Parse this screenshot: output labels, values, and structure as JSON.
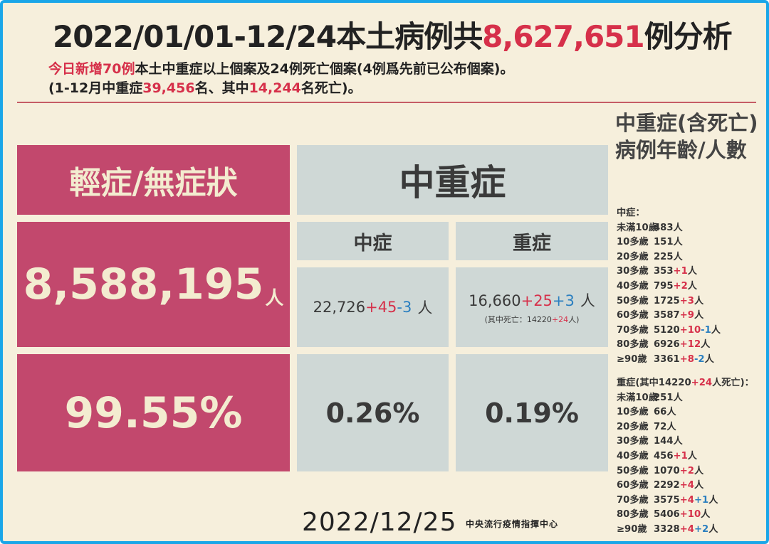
{
  "title": {
    "prefix": "2022/01/01-12/24本土病例共",
    "total": "8,627,651",
    "suffix": "例分析"
  },
  "subtitle1": {
    "new_label": "今日新增70例",
    "rest": "本土中重症以上個案及24例死亡個案(4例爲先前已公布個案)。"
  },
  "subtitle2": {
    "p1": "(1-12月中重症",
    "severe_total": "39,456",
    "p2": "名、其中",
    "deaths": "14,244",
    "p3": "名死亡)。"
  },
  "mild": {
    "header": "輕症/無症狀",
    "count": "8,588,195",
    "unit": "人",
    "percent": "99.55%"
  },
  "moderate_severe": {
    "header": "中重症",
    "moderate": {
      "header": "中症",
      "base": "22,726",
      "plus": "+45",
      "minus": "-3",
      "unit": "人",
      "percent": "0.26%"
    },
    "severe": {
      "header": "重症",
      "base": "16,660",
      "plus": "+25",
      "plus2": "+3",
      "unit": "人",
      "death_note_pre": "(其中死亡：14220",
      "death_note_plus": "+24",
      "death_note_post": "人)",
      "percent": "0.19%"
    }
  },
  "side": {
    "title": "中重症(含死亡)病例年齡/人數",
    "moderate_heading": "中症：",
    "moderate_rows": [
      {
        "age": "未滿10歲",
        "base": "483",
        "plus": "",
        "minus": "",
        "unit": "人"
      },
      {
        "age": "10多歲",
        "base": "151",
        "plus": "",
        "minus": "",
        "unit": "人"
      },
      {
        "age": "20多歲",
        "base": "225",
        "plus": "",
        "minus": "",
        "unit": "人"
      },
      {
        "age": "30多歲",
        "base": "353",
        "plus": "+1",
        "minus": "",
        "unit": "人"
      },
      {
        "age": "40多歲",
        "base": "795",
        "plus": "+2",
        "minus": "",
        "unit": "人"
      },
      {
        "age": "50多歲",
        "base": "1725",
        "plus": "+3",
        "minus": "",
        "unit": "人"
      },
      {
        "age": "60多歲",
        "base": "3587",
        "plus": "+9",
        "minus": "",
        "unit": "人"
      },
      {
        "age": "70多歲",
        "base": "5120",
        "plus": "+10",
        "minus": "-1",
        "unit": "人"
      },
      {
        "age": "80多歲",
        "base": "6926",
        "plus": "+12",
        "minus": "",
        "unit": "人"
      },
      {
        "age": "≥90歲",
        "base": "3361",
        "plus": "+8",
        "minus": "-2",
        "unit": "人"
      }
    ],
    "severe_heading_pre": "重症(其中14220",
    "severe_heading_plus": "+24",
    "severe_heading_post": "人死亡)：",
    "severe_rows": [
      {
        "age": "未滿10歲",
        "base": "251",
        "plus": "",
        "plus2": "",
        "unit": "人"
      },
      {
        "age": "10多歲",
        "base": "66",
        "plus": "",
        "plus2": "",
        "unit": "人"
      },
      {
        "age": "20多歲",
        "base": "72",
        "plus": "",
        "plus2": "",
        "unit": "人"
      },
      {
        "age": "30多歲",
        "base": "144",
        "plus": "",
        "plus2": "",
        "unit": "人"
      },
      {
        "age": "40多歲",
        "base": "456",
        "plus": "+1",
        "plus2": "",
        "unit": "人"
      },
      {
        "age": "50多歲",
        "base": "1070",
        "plus": "+2",
        "plus2": "",
        "unit": "人"
      },
      {
        "age": "60多歲",
        "base": "2292",
        "plus": "+4",
        "plus2": "",
        "unit": "人"
      },
      {
        "age": "70多歲",
        "base": "3575",
        "plus": "+4",
        "plus2": "+1",
        "unit": "人"
      },
      {
        "age": "80多歲",
        "base": "5406",
        "plus": "+10",
        "plus2": "",
        "unit": "人"
      },
      {
        "age": "≥90歲",
        "base": "3328",
        "plus": "+4",
        "plus2": "+2",
        "unit": "人"
      }
    ]
  },
  "footer": {
    "date": "2022/12/25",
    "org": "中央流行疫情指揮中心"
  },
  "colors": {
    "pink": "#c2486d",
    "grey": "#cfd8d6",
    "background": "#f6efdc",
    "red": "#d6304a",
    "blue": "#2b7fc0",
    "border": "#1aa6e8"
  }
}
